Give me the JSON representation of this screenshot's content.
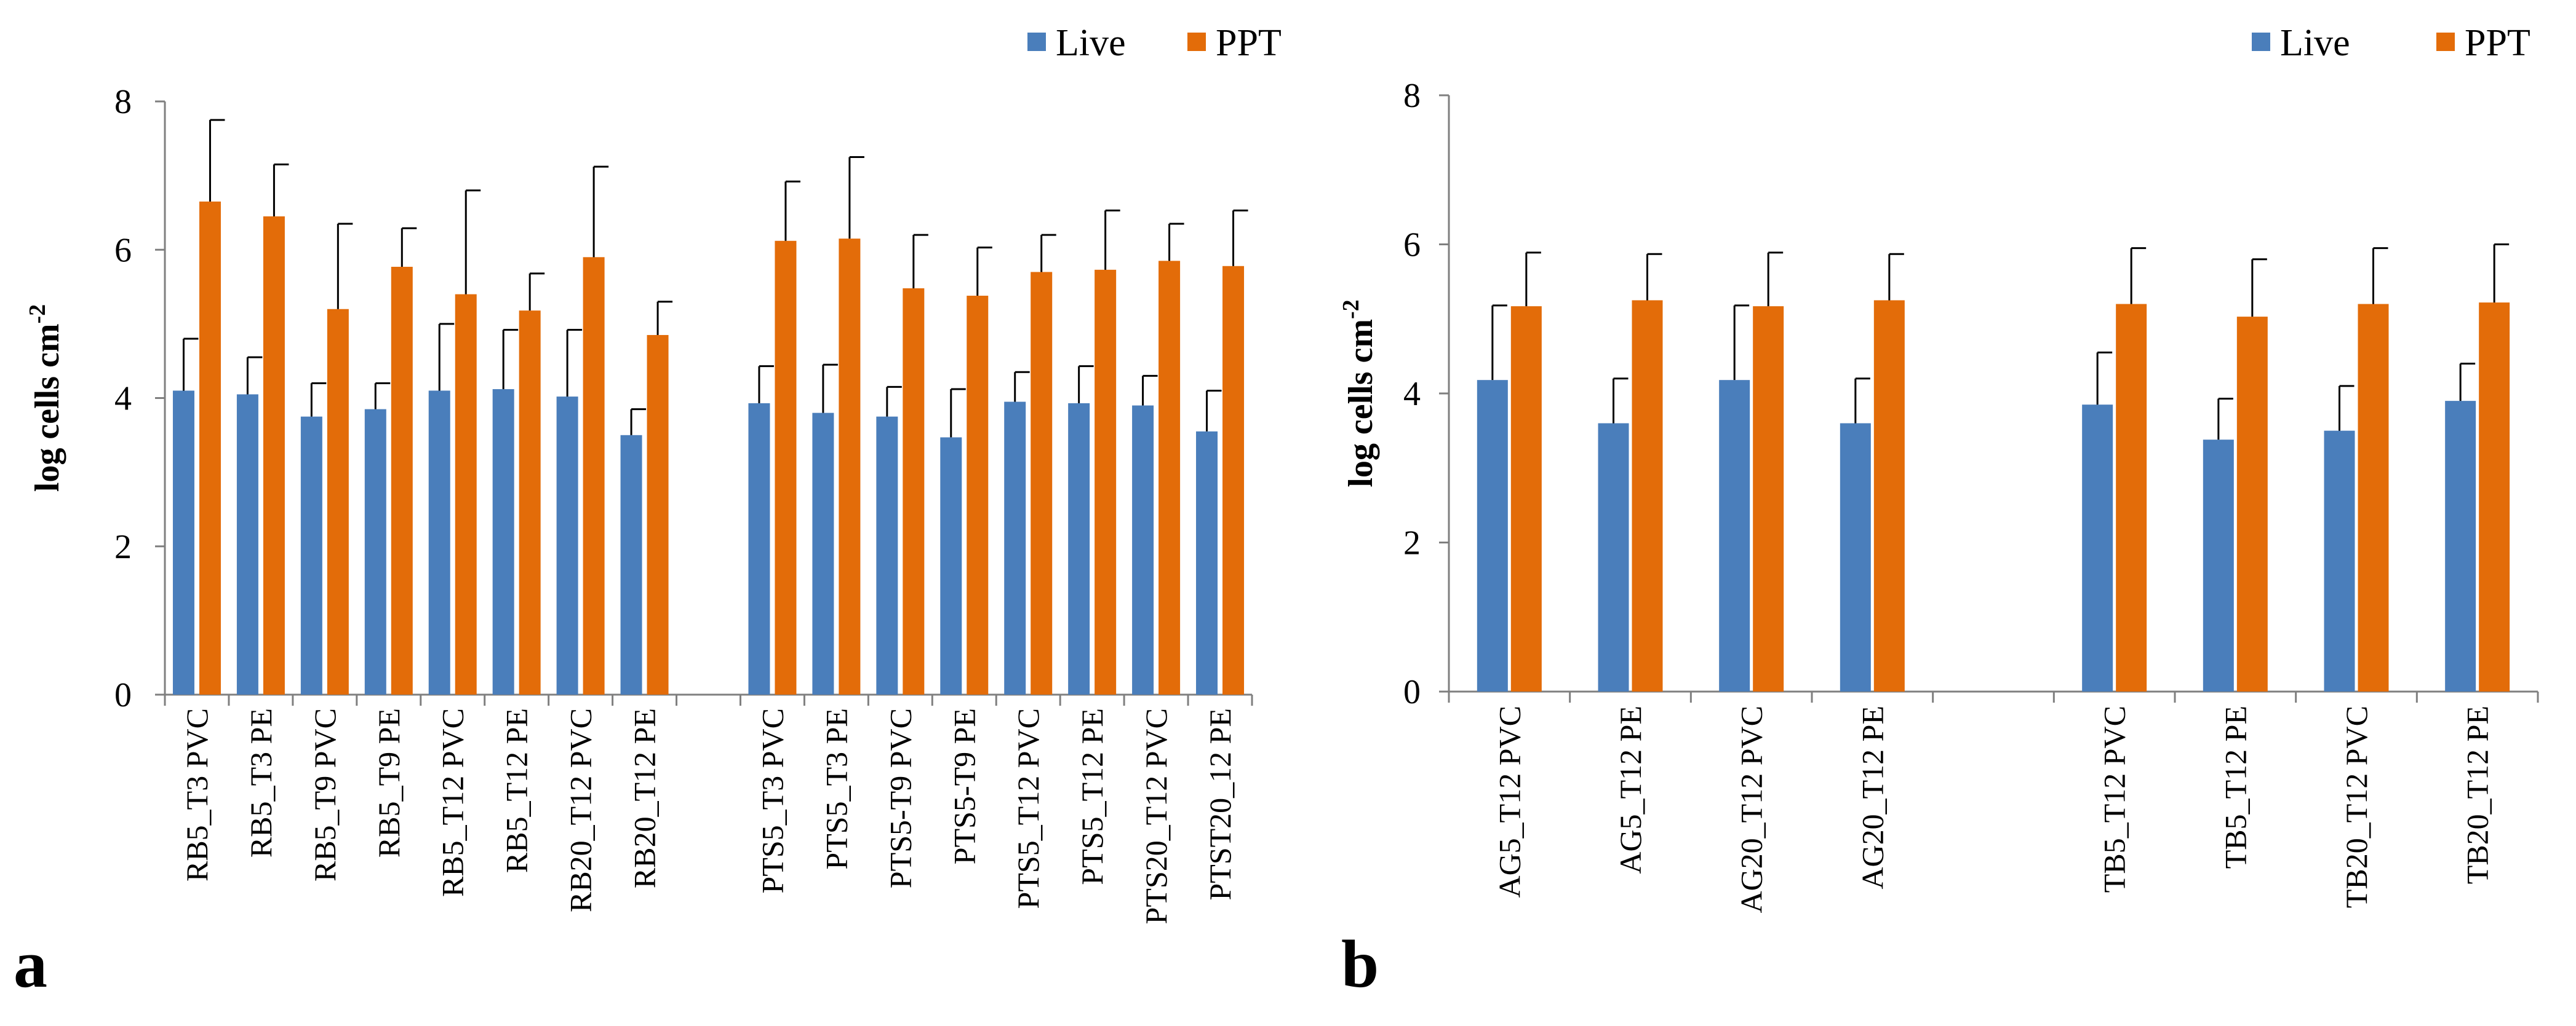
{
  "chart_data": [
    {
      "type": "bar",
      "panel_label": "a",
      "ylabel": "log cells cm",
      "ylabel_sup": "-2",
      "ylim": [
        0,
        8
      ],
      "yticks": [
        0,
        2,
        4,
        6,
        8
      ],
      "legend": {
        "position": "top-right",
        "entries": [
          "Live",
          "PPT"
        ]
      },
      "categories": [
        "RB5_T3 PVC",
        "RB5_T3 PE",
        "RB5_T9 PVC",
        "RB5_T9 PE",
        "RB5_T12 PVC",
        "RB5_T12 PE",
        "RB20_T12 PVC",
        "RB20_T12 PE",
        "",
        "PTS5_T3 PVC",
        "PTS5_T3 PE",
        "PTS5-T9 PVC",
        "PTS5-T9 PE",
        "PTS5_T12 PVC",
        "PTS5_T12 PE",
        "PTS20_T12 PVC",
        "PTST20_12 PE"
      ],
      "series": [
        {
          "name": "Live",
          "color": "#4a7ebb",
          "values": [
            4.1,
            4.05,
            3.75,
            3.85,
            4.1,
            4.12,
            4.02,
            3.5,
            null,
            3.93,
            3.8,
            3.75,
            3.47,
            3.95,
            3.93,
            3.9,
            3.55
          ],
          "errors": [
            0.7,
            0.5,
            0.45,
            0.35,
            0.9,
            0.8,
            0.9,
            0.35,
            null,
            0.5,
            0.65,
            0.4,
            0.65,
            0.4,
            0.5,
            0.4,
            0.55
          ]
        },
        {
          "name": "PPT",
          "color": "#e36c09",
          "values": [
            6.65,
            6.45,
            5.2,
            5.77,
            5.4,
            5.18,
            5.9,
            4.85,
            null,
            6.12,
            6.15,
            5.48,
            5.38,
            5.7,
            5.73,
            5.85,
            5.78
          ],
          "errors": [
            1.1,
            0.7,
            1.15,
            0.52,
            1.4,
            0.5,
            1.22,
            0.45,
            null,
            0.8,
            1.1,
            0.72,
            0.65,
            0.5,
            0.8,
            0.5,
            0.75
          ]
        }
      ]
    },
    {
      "type": "bar",
      "panel_label": "b",
      "ylabel": "log cells cm",
      "ylabel_sup": "-2",
      "ylim": [
        0,
        8
      ],
      "yticks": [
        0,
        2,
        4,
        6,
        8
      ],
      "legend": {
        "position": "top-right",
        "entries": [
          "Live",
          "PPT"
        ]
      },
      "categories": [
        "AG5_T12 PVC",
        "AG5_T12 PE",
        "AG20_T12 PVC",
        "AG20_T12 PE",
        "",
        "TB5_T12 PVC",
        "TB5_T12 PE",
        "TB20_T12 PVC",
        "TB20_T12 PE"
      ],
      "series": [
        {
          "name": "Live",
          "color": "#4a7ebb",
          "values": [
            4.18,
            3.6,
            4.18,
            3.6,
            null,
            3.85,
            3.38,
            3.5,
            3.9
          ],
          "errors": [
            1.0,
            0.6,
            1.0,
            0.6,
            null,
            0.7,
            0.55,
            0.6,
            0.5
          ]
        },
        {
          "name": "PPT",
          "color": "#e36c09",
          "values": [
            5.17,
            5.25,
            5.17,
            5.25,
            null,
            5.2,
            5.03,
            5.2,
            5.22
          ],
          "errors": [
            0.72,
            0.62,
            0.72,
            0.62,
            null,
            0.75,
            0.77,
            0.75,
            0.78
          ]
        }
      ]
    }
  ]
}
